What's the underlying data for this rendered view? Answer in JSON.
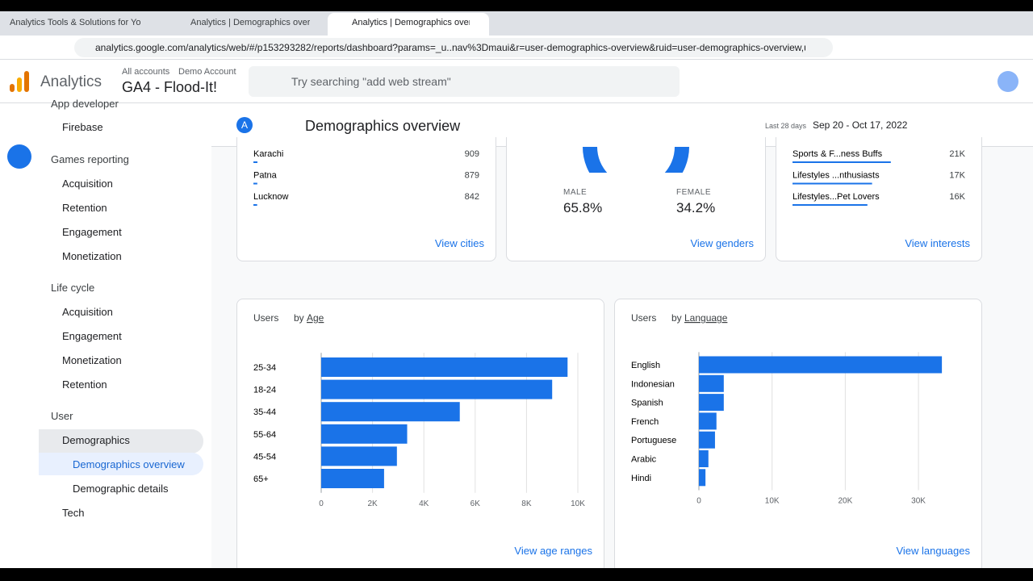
{
  "browser": {
    "tabs": [
      "Analytics Tools & Solutions for Yo",
      "Analytics | Demographics overvie",
      "Analytics | Demographics overvie"
    ],
    "url": "analytics.google.com/analytics/web/#/p153293282/reports/dashboard?params=_u..nav%3Dmaui&r=user-demographics-overview&ruid=user-demographics-overview,us..."
  },
  "header": {
    "product": "Analytics",
    "breadcrumb": [
      "All accounts",
      "Demo Account"
    ],
    "property": "GA4 - Flood-It!",
    "search_placeholder": "Try searching \"add web stream\""
  },
  "sidebar": {
    "items": [
      "App developer",
      "Firebase",
      "Games reporting",
      "Acquisition",
      "Retention",
      "Engagement",
      "Monetization",
      "Life cycle",
      "Acquisition",
      "Engagement",
      "Monetization",
      "Retention",
      "User",
      "Demographics",
      "Demographics overview",
      "Demographic details",
      "Tech"
    ]
  },
  "toolbar": {
    "avatar": "A",
    "title": "Demographics overview",
    "date_prefix": "Last 28 days",
    "date_range": "Sep 20 - Oct 17, 2022"
  },
  "cities": {
    "rows": [
      {
        "name": "Karachi",
        "value": 909
      },
      {
        "name": "Patna",
        "value": 879
      },
      {
        "name": "Lucknow",
        "value": 842
      }
    ],
    "link": "View cities"
  },
  "genders": {
    "items": [
      {
        "name": "MALE",
        "value": "65.8%"
      },
      {
        "name": "FEMALE",
        "value": "34.2%"
      }
    ],
    "link": "View genders"
  },
  "interests": {
    "rows": [
      {
        "name": "Sports & F...ness Buffs",
        "value": 21000,
        "value_label": "21K"
      },
      {
        "name": "Lifestyles ...nthusiasts",
        "value": 17000,
        "value_label": "17K"
      },
      {
        "name": "Lifestyles...Pet Lovers",
        "value": 16000,
        "value_label": "16K"
      }
    ],
    "link": "View interests"
  },
  "age_chart": {
    "type": "bar",
    "metric": "Users",
    "by": "by",
    "dimension": "Age",
    "categories": [
      "25-34",
      "18-24",
      "35-44",
      "55-64",
      "45-54",
      "65+"
    ],
    "values": [
      9600,
      9000,
      5400,
      3350,
      2950,
      2450
    ],
    "color": "#1a73e8",
    "xlim": [
      0,
      10000
    ],
    "xticks": [
      0,
      {
        "value": 2000,
        "label": "2K"
      },
      {
        "value": 4000,
        "label": "4K"
      },
      {
        "value": 6000,
        "label": "6K"
      },
      {
        "value": 8000,
        "label": "8K"
      },
      {
        "value": 10000,
        "label": "10K"
      }
    ],
    "grid": true,
    "link": "View age ranges"
  },
  "language_chart": {
    "type": "bar",
    "metric": "Users",
    "by": "by",
    "dimension": "Language",
    "categories": [
      "English",
      "Indonesian",
      "Spanish",
      "French",
      "Portuguese",
      "Arabic",
      "Hindi"
    ],
    "values": [
      33200,
      3400,
      3400,
      2400,
      2200,
      1300,
      900
    ],
    "color": "#1a73e8",
    "xlim": [
      0,
      36000
    ],
    "xticks": [
      0,
      {
        "value": 10000,
        "label": "10K"
      },
      {
        "value": 20000,
        "label": "20K"
      },
      {
        "value": 30000,
        "label": "30K"
      }
    ],
    "grid": true,
    "link": "View languages"
  }
}
